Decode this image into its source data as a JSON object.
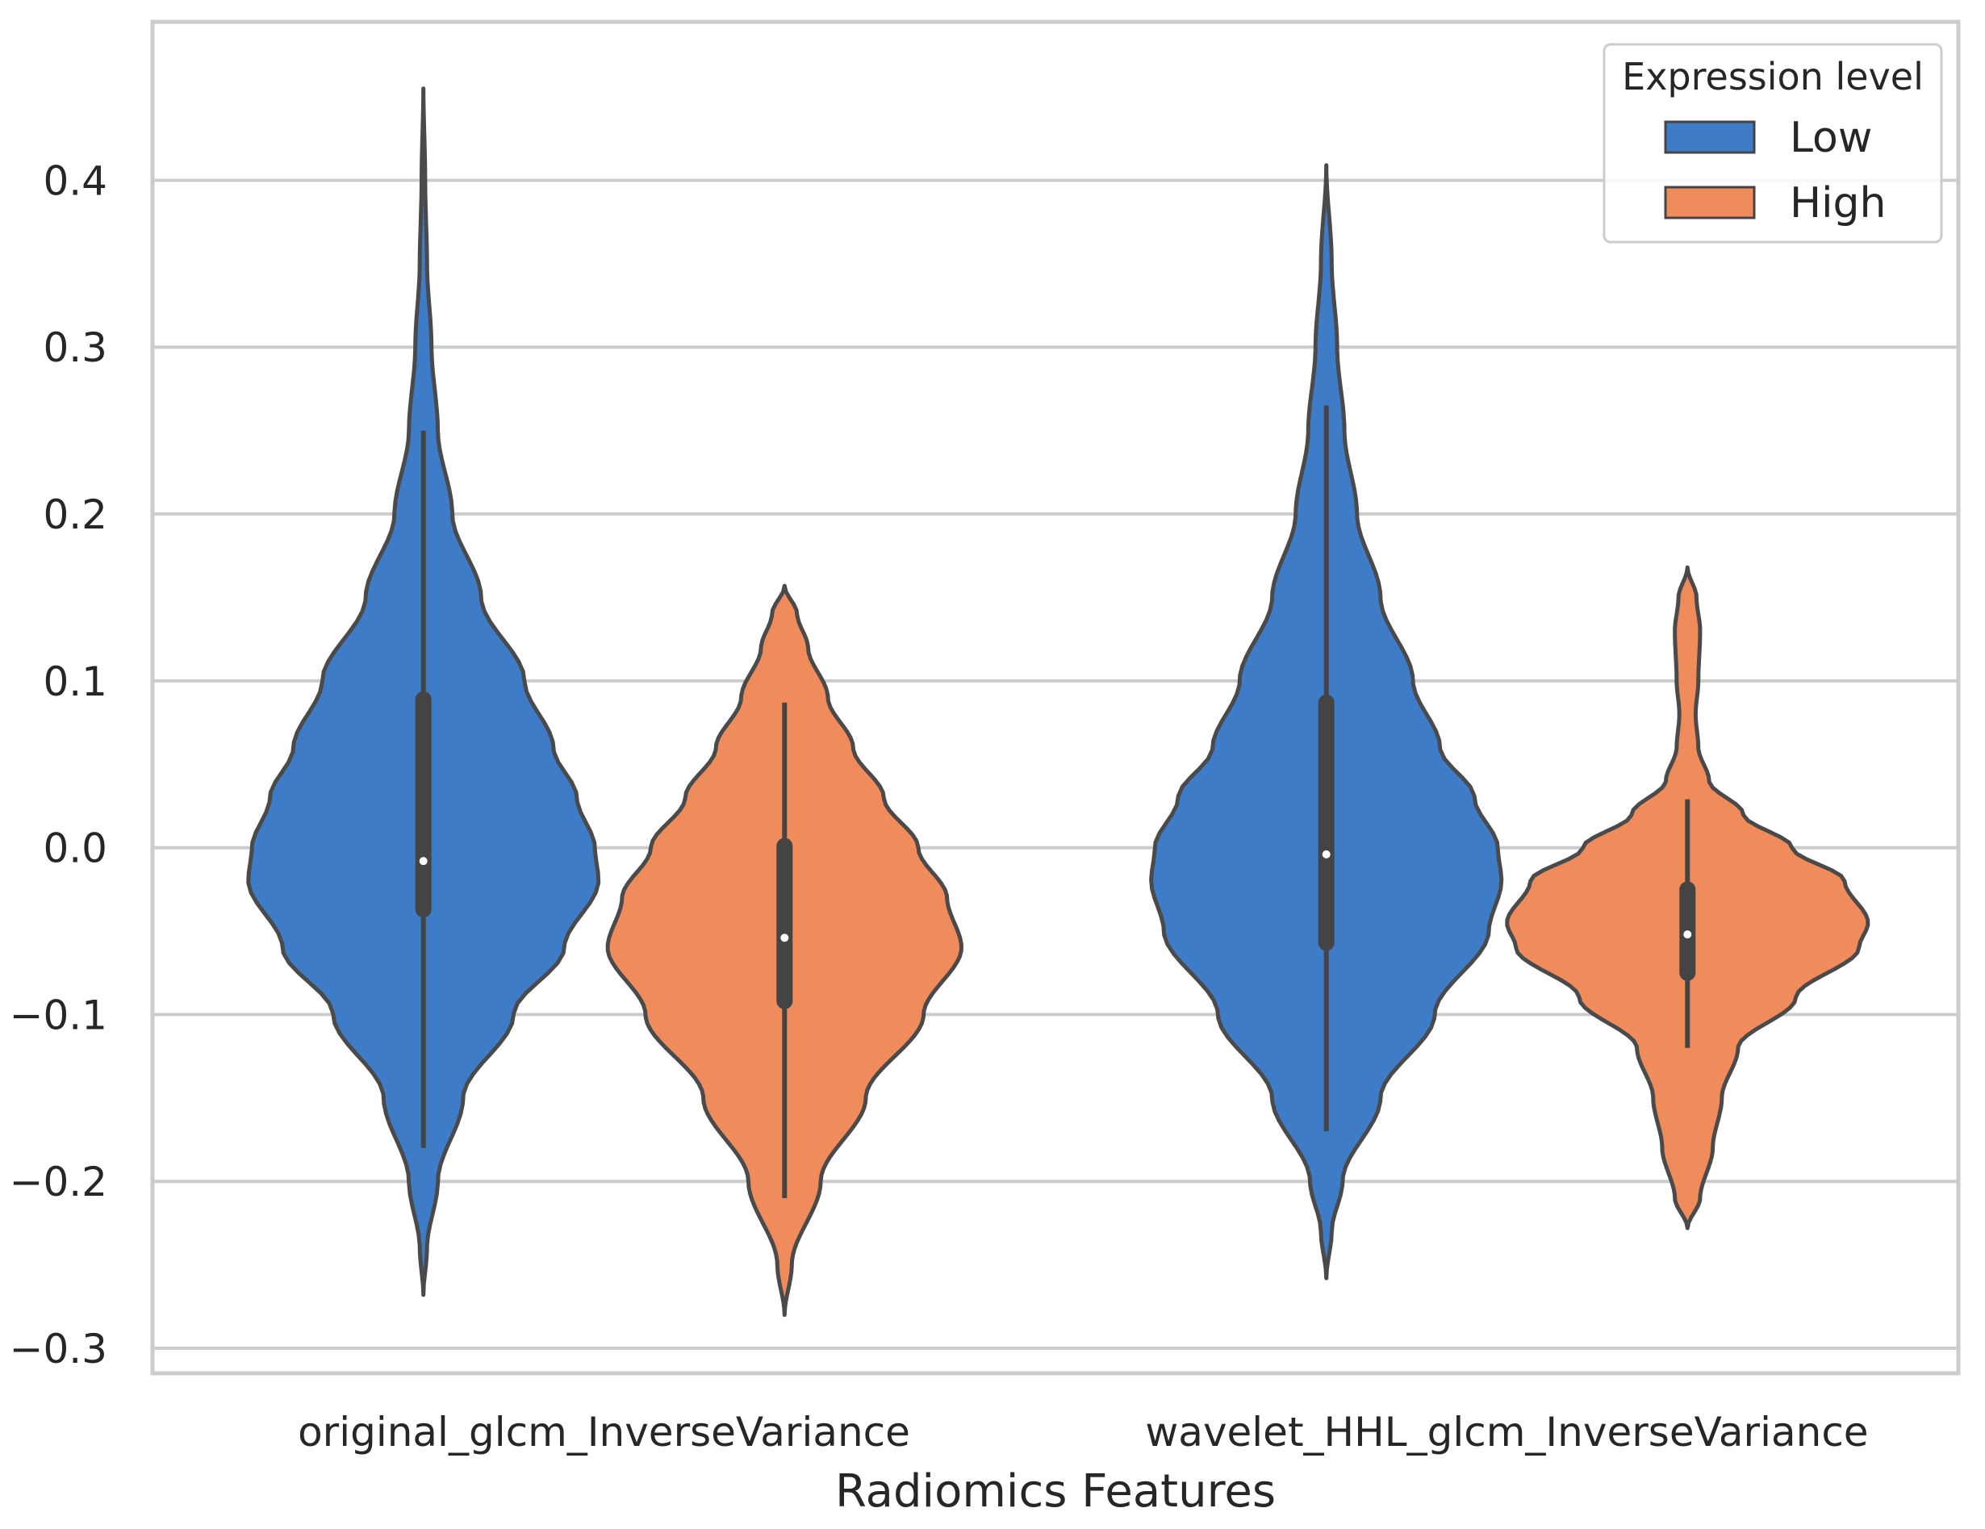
{
  "chart_data": {
    "type": "violin",
    "title": "",
    "xlabel": "Radiomics Features",
    "ylabel": "",
    "ylim": [
      -0.315,
      0.495
    ],
    "yticks": [
      -0.3,
      -0.2,
      -0.1,
      0.0,
      0.1,
      0.2,
      0.3,
      0.4
    ],
    "ytick_labels": [
      "−0.3",
      "−0.2",
      "−0.1",
      "0.0",
      "0.1",
      "0.2",
      "0.3",
      "0.4"
    ],
    "categories": [
      "original_glcm_InverseVariance",
      "wavelet_HHL_glcm_InverseVariance"
    ],
    "grid": true,
    "legend": {
      "title": "Expression level",
      "position": "top-right"
    },
    "series": [
      {
        "name": "Low",
        "color": "#3f7cc8",
        "violins": [
          {
            "category": "original_glcm_InverseVariance",
            "min": -0.268,
            "max": 0.455,
            "whisker_low": -0.18,
            "whisker_high": 0.25,
            "q1": -0.037,
            "median": -0.008,
            "q3": 0.089,
            "profile": [
              [
                -0.268,
                0.0
              ],
              [
                -0.24,
                0.02
              ],
              [
                -0.2,
                0.08
              ],
              [
                -0.15,
                0.22
              ],
              [
                -0.1,
                0.5
              ],
              [
                -0.06,
                0.78
              ],
              [
                -0.02,
                0.97
              ],
              [
                0.0,
                0.95
              ],
              [
                0.03,
                0.85
              ],
              [
                0.06,
                0.72
              ],
              [
                0.1,
                0.56
              ],
              [
                0.15,
                0.32
              ],
              [
                0.2,
                0.16
              ],
              [
                0.25,
                0.08
              ],
              [
                0.3,
                0.045
              ],
              [
                0.35,
                0.02
              ],
              [
                0.4,
                0.01
              ],
              [
                0.455,
                0.0
              ]
            ]
          },
          {
            "category": "wavelet_HHL_glcm_InverseVariance",
            "min": -0.258,
            "max": 0.409,
            "whisker_low": -0.17,
            "whisker_high": 0.265,
            "q1": -0.057,
            "median": -0.004,
            "q3": 0.087,
            "profile": [
              [
                -0.258,
                0.0
              ],
              [
                -0.23,
                0.03
              ],
              [
                -0.2,
                0.09
              ],
              [
                -0.15,
                0.3
              ],
              [
                -0.1,
                0.6
              ],
              [
                -0.05,
                0.9
              ],
              [
                -0.02,
                0.97
              ],
              [
                0.0,
                0.95
              ],
              [
                0.03,
                0.82
              ],
              [
                0.06,
                0.63
              ],
              [
                0.1,
                0.48
              ],
              [
                0.15,
                0.3
              ],
              [
                0.2,
                0.17
              ],
              [
                0.25,
                0.1
              ],
              [
                0.3,
                0.06
              ],
              [
                0.35,
                0.03
              ],
              [
                0.409,
                0.0
              ]
            ]
          }
        ]
      },
      {
        "name": "High",
        "color": "#f08b5c",
        "violins": [
          {
            "category": "original_glcm_InverseVariance",
            "min": -0.28,
            "max": 0.157,
            "whisker_low": -0.21,
            "whisker_high": 0.087,
            "q1": -0.092,
            "median": -0.054,
            "q3": 0.001,
            "profile": [
              [
                -0.28,
                0.0
              ],
              [
                -0.25,
                0.04
              ],
              [
                -0.2,
                0.2
              ],
              [
                -0.15,
                0.45
              ],
              [
                -0.1,
                0.77
              ],
              [
                -0.06,
                0.98
              ],
              [
                -0.03,
                0.9
              ],
              [
                0.0,
                0.74
              ],
              [
                0.03,
                0.55
              ],
              [
                0.06,
                0.38
              ],
              [
                0.09,
                0.24
              ],
              [
                0.12,
                0.13
              ],
              [
                0.14,
                0.07
              ],
              [
                0.157,
                0.0
              ]
            ]
          },
          {
            "category": "wavelet_HHL_glcm_InverseVariance",
            "min": -0.228,
            "max": 0.168,
            "whisker_low": -0.12,
            "whisker_high": 0.029,
            "q1": -0.075,
            "median": -0.052,
            "q3": -0.025,
            "profile": [
              [
                -0.228,
                0.0
              ],
              [
                -0.21,
                0.07
              ],
              [
                -0.18,
                0.14
              ],
              [
                -0.15,
                0.19
              ],
              [
                -0.12,
                0.28
              ],
              [
                -0.09,
                0.6
              ],
              [
                -0.06,
                0.95
              ],
              [
                -0.045,
                1.0
              ],
              [
                -0.02,
                0.87
              ],
              [
                0.0,
                0.58
              ],
              [
                0.02,
                0.31
              ],
              [
                0.04,
                0.12
              ],
              [
                0.06,
                0.06
              ],
              [
                0.08,
                0.045
              ],
              [
                0.1,
                0.06
              ],
              [
                0.13,
                0.07
              ],
              [
                0.15,
                0.05
              ],
              [
                0.168,
                0.0
              ]
            ]
          }
        ]
      }
    ]
  }
}
